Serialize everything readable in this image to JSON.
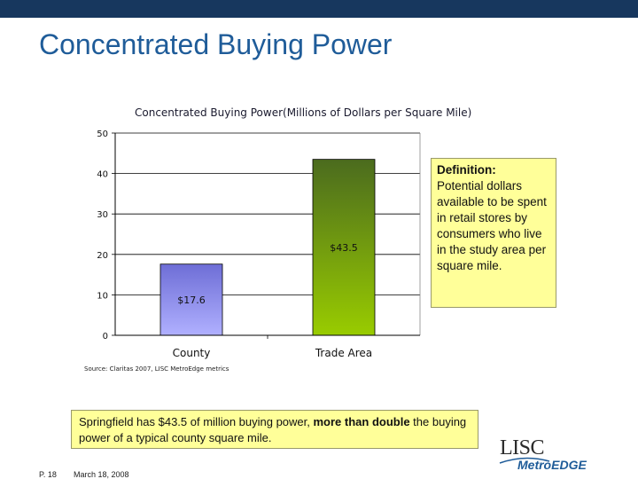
{
  "slide": {
    "title": "Concentrated Buying Power",
    "source": "Source: Claritas 2007, LISC MetroEdge metrics",
    "definition_heading": "Definition:",
    "definition_body": "Potential dollars available to be spent in retail stores by consumers who live in the study area per square mile.",
    "summary_prefix": "Springfield has $43.5 of million buying power, ",
    "summary_bold": "more than double",
    "summary_suffix": " the buying power of a typical county square mile.",
    "page_number": "P. 18",
    "date": "March 18, 2008",
    "logo_top": "LISC",
    "logo_bottom_metro": "Metro",
    "logo_bottom_edge": "EDGE"
  },
  "colors": {
    "header_bar": "#17375e",
    "title": "#1f5c99",
    "county_bar_top": "#6e6ed6",
    "county_bar_bottom": "#b0b0ff",
    "trade_bar_top": "#4b6b1e",
    "trade_bar_bottom": "#99cc00",
    "note_fill": "#ffff99"
  },
  "chart_data": {
    "type": "bar",
    "title": "Concentrated Buying Power(Millions of Dollars per Square Mile)",
    "categories": [
      "County",
      "Trade Area"
    ],
    "values": [
      17.6,
      43.5
    ],
    "data_labels": [
      "$17.6",
      "$43.5"
    ],
    "ylim": [
      0,
      50
    ],
    "yticks": [
      0,
      10,
      20,
      30,
      40,
      50
    ],
    "grid": true,
    "legend": "none"
  }
}
